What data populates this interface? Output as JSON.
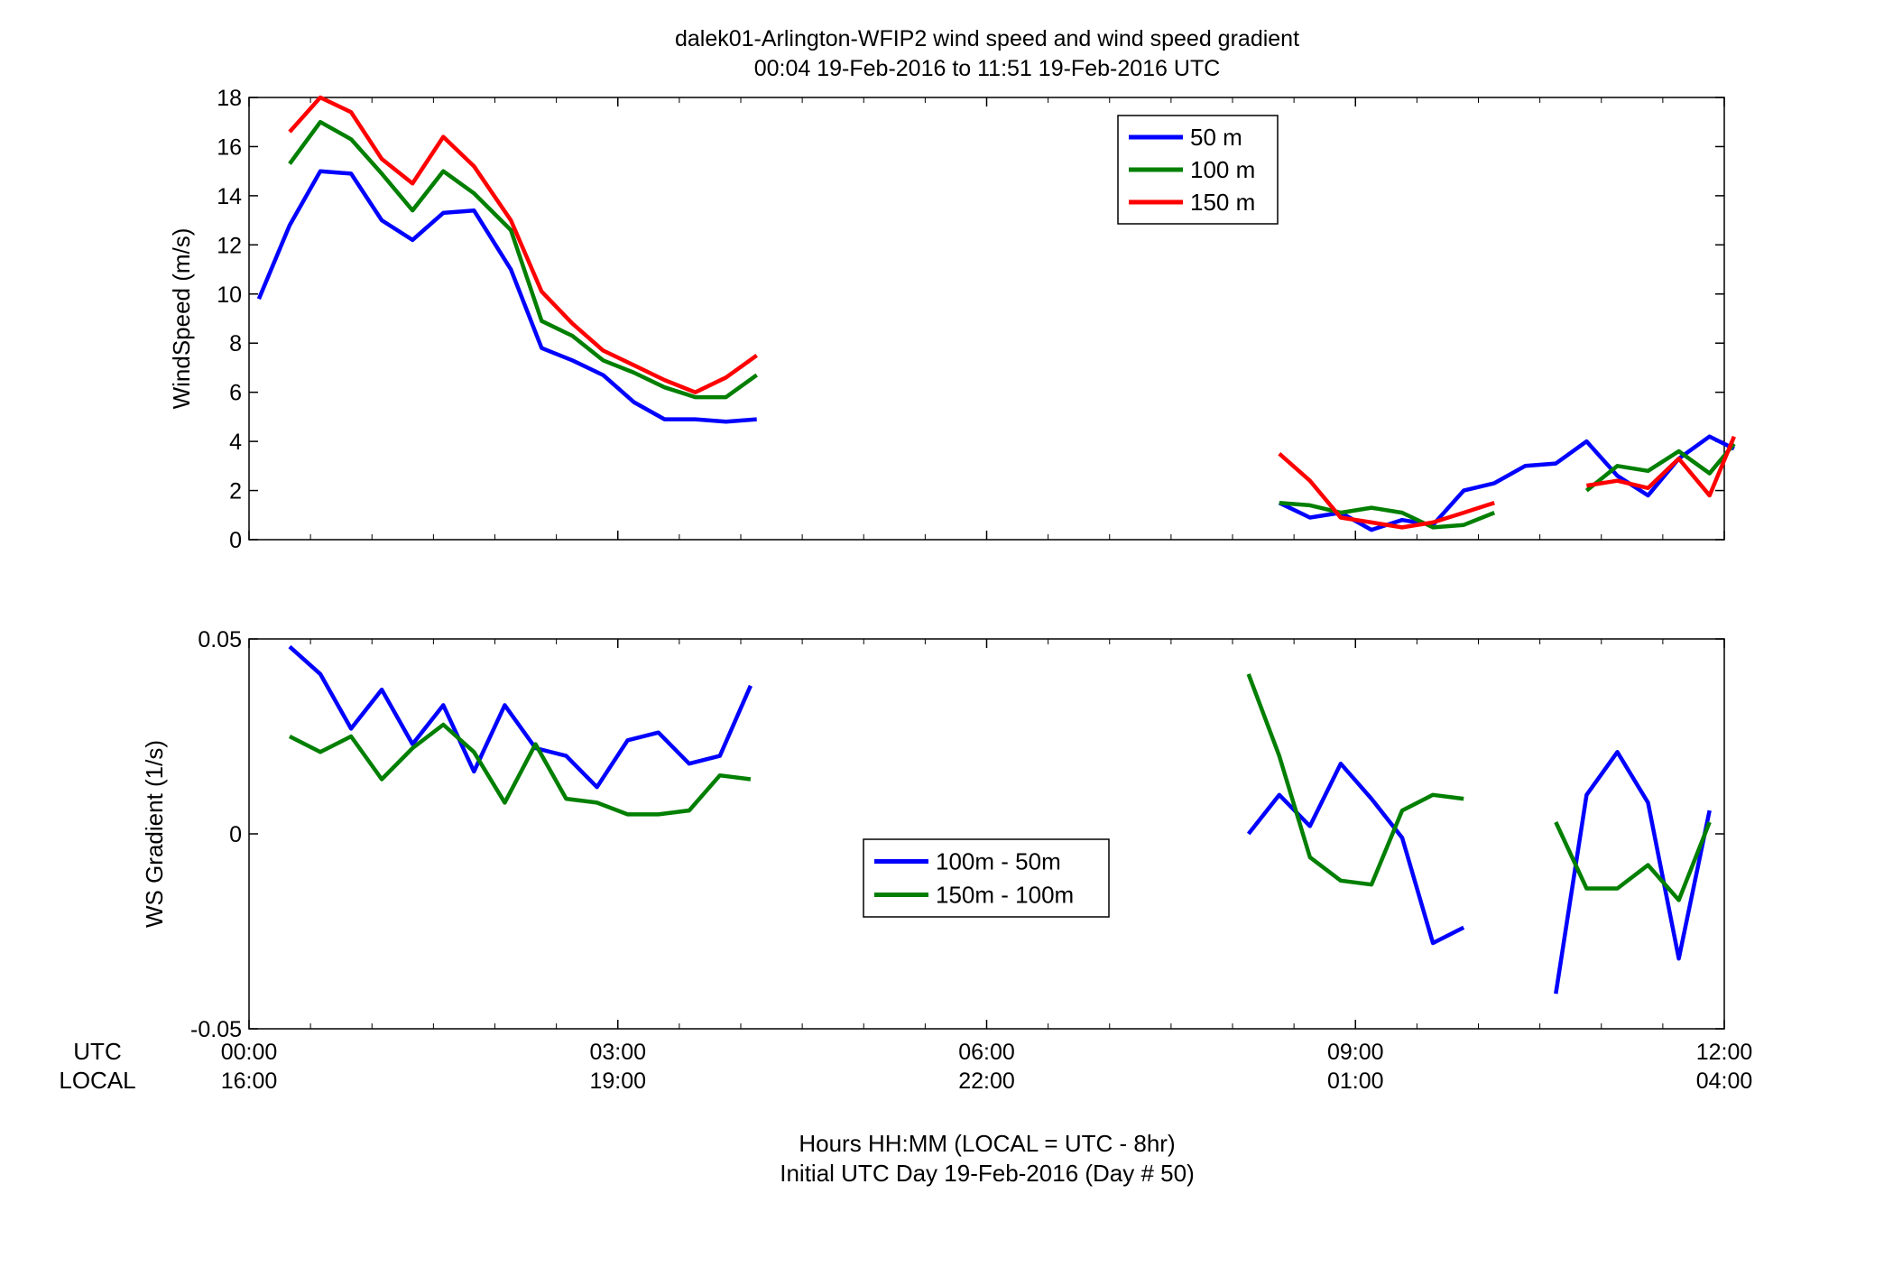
{
  "figure": {
    "title_line1": "dalek01-Arlington-WFIP2  wind speed and wind speed gradient",
    "title_line2": "00:04 19-Feb-2016 to 11:51 19-Feb-2016  UTC",
    "row_label_utc": "UTC",
    "row_label_local": "LOCAL",
    "xlabel_line1": "Hours HH:MM  (LOCAL = UTC - 8hr)",
    "xlabel_line2": "Initial UTC Day 19-Feb-2016 (Day # 50)",
    "x_ticks_utc": [
      "00:00",
      "03:00",
      "06:00",
      "09:00",
      "12:00"
    ],
    "x_ticks_local": [
      "16:00",
      "19:00",
      "22:00",
      "01:00",
      "04:00"
    ]
  },
  "chart_data": [
    {
      "type": "line",
      "ylabel": "WindSpeed (m/s)",
      "xlim": [
        0,
        12
      ],
      "ylim": [
        0,
        18
      ],
      "x_unit": "hours UTC",
      "yticks": [
        0,
        2,
        4,
        6,
        8,
        10,
        12,
        14,
        16,
        18
      ],
      "legend_position": "upper-middle-right",
      "series": [
        {
          "name": "50 m",
          "color": "#0000ff",
          "segments": [
            [
              [
                0.08,
                9.8
              ],
              [
                0.33,
                12.8
              ],
              [
                0.58,
                15.0
              ],
              [
                0.83,
                14.9
              ],
              [
                1.08,
                13.0
              ],
              [
                1.33,
                12.2
              ],
              [
                1.58,
                13.3
              ],
              [
                1.83,
                13.4
              ],
              [
                2.13,
                11.0
              ],
              [
                2.38,
                7.8
              ],
              [
                2.63,
                7.3
              ],
              [
                2.88,
                6.7
              ],
              [
                3.13,
                5.6
              ],
              [
                3.38,
                4.9
              ],
              [
                3.63,
                4.9
              ],
              [
                3.88,
                4.8
              ],
              [
                4.13,
                4.9
              ]
            ],
            [
              [
                8.38,
                1.5
              ],
              [
                8.63,
                0.9
              ],
              [
                8.88,
                1.1
              ],
              [
                9.13,
                0.4
              ],
              [
                9.38,
                0.8
              ],
              [
                9.63,
                0.6
              ],
              [
                9.88,
                2.0
              ],
              [
                10.13,
                2.3
              ],
              [
                10.38,
                3.0
              ],
              [
                10.63,
                3.1
              ],
              [
                10.88,
                4.0
              ],
              [
                11.13,
                2.6
              ],
              [
                11.38,
                1.8
              ],
              [
                11.63,
                3.3
              ],
              [
                11.88,
                4.2
              ],
              [
                12.08,
                3.7
              ]
            ]
          ]
        },
        {
          "name": "100 m",
          "color": "#007f00",
          "segments": [
            [
              [
                0.33,
                15.3
              ],
              [
                0.58,
                17.0
              ],
              [
                0.83,
                16.3
              ],
              [
                1.08,
                14.9
              ],
              [
                1.33,
                13.4
              ],
              [
                1.58,
                15.0
              ],
              [
                1.83,
                14.1
              ],
              [
                2.13,
                12.6
              ],
              [
                2.38,
                8.9
              ],
              [
                2.63,
                8.3
              ],
              [
                2.88,
                7.3
              ],
              [
                3.13,
                6.8
              ],
              [
                3.38,
                6.2
              ],
              [
                3.63,
                5.8
              ],
              [
                3.88,
                5.8
              ],
              [
                4.13,
                6.7
              ]
            ],
            [
              [
                8.38,
                1.5
              ],
              [
                8.63,
                1.4
              ],
              [
                8.88,
                1.1
              ],
              [
                9.13,
                1.3
              ],
              [
                9.38,
                1.1
              ],
              [
                9.63,
                0.5
              ],
              [
                9.88,
                0.6
              ],
              [
                10.13,
                1.1
              ]
            ],
            [
              [
                10.88,
                2.0
              ],
              [
                11.13,
                3.0
              ],
              [
                11.38,
                2.8
              ],
              [
                11.63,
                3.6
              ],
              [
                11.88,
                2.7
              ],
              [
                12.08,
                3.9
              ]
            ]
          ]
        },
        {
          "name": "150 m",
          "color": "#ff0000",
          "segments": [
            [
              [
                0.33,
                16.6
              ],
              [
                0.58,
                18.0
              ],
              [
                0.83,
                17.4
              ],
              [
                1.08,
                15.5
              ],
              [
                1.33,
                14.5
              ],
              [
                1.58,
                16.4
              ],
              [
                1.83,
                15.2
              ],
              [
                2.13,
                13.0
              ],
              [
                2.38,
                10.1
              ],
              [
                2.63,
                8.8
              ],
              [
                2.88,
                7.7
              ],
              [
                3.13,
                7.1
              ],
              [
                3.38,
                6.5
              ],
              [
                3.63,
                6.0
              ],
              [
                3.88,
                6.6
              ],
              [
                4.13,
                7.5
              ]
            ],
            [
              [
                8.38,
                3.5
              ],
              [
                8.63,
                2.4
              ],
              [
                8.88,
                0.9
              ],
              [
                9.13,
                0.7
              ],
              [
                9.38,
                0.5
              ],
              [
                9.63,
                0.7
              ],
              [
                9.88,
                1.1
              ],
              [
                10.13,
                1.5
              ]
            ],
            [
              [
                10.88,
                2.2
              ],
              [
                11.13,
                2.4
              ],
              [
                11.38,
                2.1
              ],
              [
                11.63,
                3.3
              ],
              [
                11.88,
                1.8
              ],
              [
                12.08,
                4.2
              ]
            ]
          ]
        }
      ]
    },
    {
      "type": "line",
      "ylabel": "WS Gradient (1/s)",
      "xlim": [
        0,
        12
      ],
      "ylim": [
        -0.05,
        0.05
      ],
      "x_unit": "hours UTC",
      "yticks": [
        -0.05,
        0,
        0.05
      ],
      "legend_position": "center",
      "series": [
        {
          "name": "100m - 50m",
          "color": "#0000ff",
          "segments": [
            [
              [
                0.33,
                0.048
              ],
              [
                0.58,
                0.041
              ],
              [
                0.83,
                0.027
              ],
              [
                1.08,
                0.037
              ],
              [
                1.33,
                0.023
              ],
              [
                1.58,
                0.033
              ],
              [
                1.83,
                0.016
              ],
              [
                2.08,
                0.033
              ],
              [
                2.33,
                0.022
              ],
              [
                2.58,
                0.02
              ],
              [
                2.83,
                0.012
              ],
              [
                3.08,
                0.024
              ],
              [
                3.33,
                0.026
              ],
              [
                3.58,
                0.018
              ],
              [
                3.83,
                0.02
              ],
              [
                4.08,
                0.038
              ]
            ],
            [
              [
                8.13,
                0.0
              ],
              [
                8.38,
                0.01
              ],
              [
                8.63,
                0.002
              ],
              [
                8.88,
                0.018
              ],
              [
                9.13,
                0.009
              ],
              [
                9.38,
                -0.001
              ],
              [
                9.63,
                -0.028
              ],
              [
                9.88,
                -0.024
              ]
            ],
            [
              [
                10.63,
                -0.041
              ],
              [
                10.88,
                0.01
              ],
              [
                11.13,
                0.021
              ],
              [
                11.38,
                0.008
              ],
              [
                11.63,
                -0.032
              ],
              [
                11.88,
                0.006
              ]
            ]
          ]
        },
        {
          "name": "150m - 100m",
          "color": "#007f00",
          "segments": [
            [
              [
                0.33,
                0.025
              ],
              [
                0.58,
                0.021
              ],
              [
                0.83,
                0.025
              ],
              [
                1.08,
                0.014
              ],
              [
                1.33,
                0.022
              ],
              [
                1.58,
                0.028
              ],
              [
                1.83,
                0.021
              ],
              [
                2.08,
                0.008
              ],
              [
                2.33,
                0.023
              ],
              [
                2.58,
                0.009
              ],
              [
                2.83,
                0.008
              ],
              [
                3.08,
                0.005
              ],
              [
                3.33,
                0.005
              ],
              [
                3.58,
                0.006
              ],
              [
                3.83,
                0.015
              ],
              [
                4.08,
                0.014
              ]
            ],
            [
              [
                8.13,
                0.041
              ],
              [
                8.38,
                0.02
              ],
              [
                8.63,
                -0.006
              ],
              [
                8.88,
                -0.012
              ],
              [
                9.13,
                -0.013
              ],
              [
                9.38,
                0.006
              ],
              [
                9.63,
                0.01
              ],
              [
                9.88,
                0.009
              ]
            ],
            [
              [
                10.63,
                0.003
              ],
              [
                10.88,
                -0.014
              ],
              [
                11.13,
                -0.014
              ],
              [
                11.38,
                -0.008
              ],
              [
                11.63,
                -0.017
              ],
              [
                11.88,
                0.003
              ]
            ]
          ]
        }
      ]
    }
  ]
}
